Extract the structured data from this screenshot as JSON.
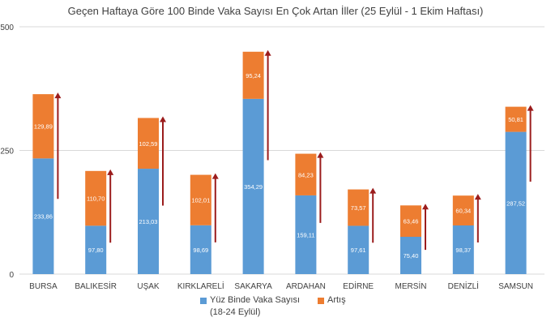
{
  "chart_data": {
    "type": "bar",
    "stacked": true,
    "title": "Geçen Haftaya Göre 100 Binde Vaka Sayısı En Çok Artan İller (25 Eylül - 1 Ekim Haftası)",
    "categories": [
      "BURSA",
      "BALIKESİR",
      "UŞAK",
      "KIRKLARELİ",
      "SAKARYA",
      "ARDAHAN",
      "EDİRNE",
      "MERSİN",
      "DENİZLİ",
      "SAMSUN"
    ],
    "series": [
      {
        "name_line1": "Yüz Binde Vaka Sayısı",
        "name_line2": "(18-24 Eylül)",
        "color": "#5b9bd5",
        "values": [
          233.86,
          97.8,
          213.03,
          98.69,
          354.29,
          159.11,
          97.61,
          75.4,
          98.37,
          287.52
        ],
        "labels": [
          "233,86",
          "97,80",
          "213,03",
          "98,69",
          "354,29",
          "159,11",
          "97,61",
          "75,40",
          "98,37",
          "287,52"
        ]
      },
      {
        "name": "Artış",
        "color": "#ed7d31",
        "values": [
          129.89,
          110.7,
          102.59,
          102.01,
          95.24,
          84.23,
          73.57,
          63.46,
          60.34,
          50.81
        ],
        "labels": [
          "129,89",
          "110,70",
          "102,59",
          "102,01",
          "95,24",
          "84,23",
          "73,57",
          "63,46",
          "60,34",
          "50,81"
        ]
      }
    ],
    "yticks": [
      "0",
      "250",
      "500"
    ],
    "ylim": [
      0,
      500
    ],
    "grid": "horizontal",
    "legend_position": "bottom",
    "annotation": "upward arrow next to each bar",
    "arrow_color": "#9b1c1c"
  }
}
